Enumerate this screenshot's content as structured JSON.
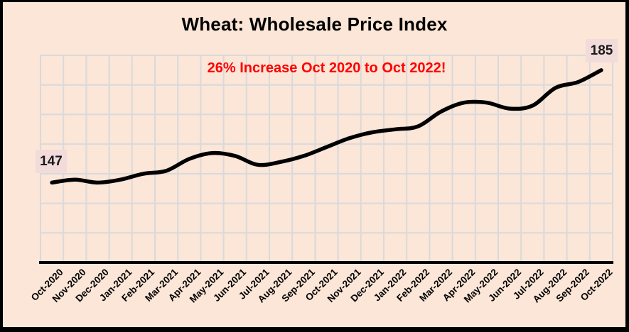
{
  "chart": {
    "title": "Wheat: Wholesale Price Index",
    "annotation": "26% Increase Oct 2020 to Oct 2022!",
    "start_label": "147",
    "end_label": "185"
  },
  "colors": {
    "background": "#fbe6d7",
    "frame_border": "#000000",
    "line": "#000000",
    "axis": "#000000",
    "gridline": "#d9d9dc",
    "annotation_red": "#ff0000",
    "data_label_background": "#f2dcdb",
    "text": "#000000"
  },
  "chart_data": {
    "type": "line",
    "title": "Wheat: Wholesale Price Index",
    "annotation": "26% Increase Oct 2020 to Oct 2022!",
    "series_name": "Wheat Wholesale Price Index",
    "categories": [
      "Oct-2020",
      "Nov-2020",
      "Dec-2020",
      "Jan-2021",
      "Feb-2021",
      "Mar-2021",
      "Apr-2021",
      "May-2021",
      "Jun-2021",
      "Jul-2021",
      "Aug-2021",
      "Sep-2021",
      "Oct-2021",
      "Nov-2021",
      "Dec-2021",
      "Jan-2022",
      "Feb-2022",
      "Mar-2022",
      "Apr-2022",
      "May-2022",
      "Jun-2022",
      "Jul-2022",
      "Aug-2022",
      "Sep-2022",
      "Oct-2022"
    ],
    "values": [
      147,
      148,
      147,
      148,
      150,
      151,
      155,
      157,
      156,
      153,
      154,
      156,
      159,
      162,
      164,
      165,
      166,
      171,
      174,
      174,
      172,
      173,
      179,
      181,
      185
    ],
    "first_point_label": "147",
    "last_point_label": "185",
    "xlabel": "",
    "ylabel": "",
    "ylim": [
      120,
      190
    ],
    "y_gridline_step": 10,
    "grid": "on",
    "legend": "none",
    "smooth_line": true,
    "x_label_rotation_deg": 45
  }
}
